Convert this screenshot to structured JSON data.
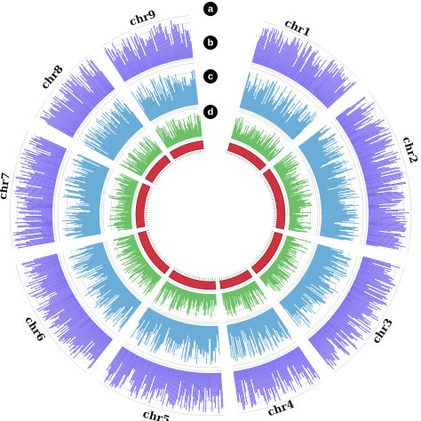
{
  "chart_data": {
    "type": "circos",
    "chromosomes": [
      "chr1",
      "chr2",
      "chr3",
      "chr4",
      "chr5",
      "chr6",
      "chr7",
      "chr8",
      "chr9"
    ],
    "track_labels": [
      "a",
      "b",
      "c",
      "d"
    ],
    "tracks": [
      {
        "letter": "a",
        "kind": "histogram",
        "color": "#7b6cf0"
      },
      {
        "letter": "b",
        "kind": "histogram",
        "color": "#6aaed8"
      },
      {
        "letter": "c",
        "kind": "histogram",
        "color": "#6cc068"
      },
      {
        "letter": "d",
        "kind": "ideogram",
        "color": "#d0333f"
      }
    ],
    "gridlines": true
  }
}
